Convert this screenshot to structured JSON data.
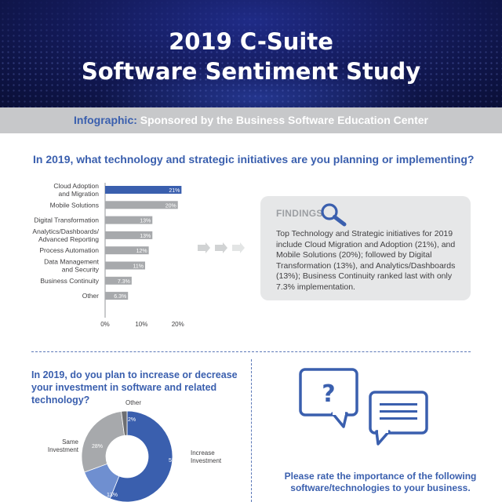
{
  "header": {
    "title_line1": "2019 C-Suite",
    "title_line2": "Software Sentiment Study"
  },
  "banner": {
    "prefix": "Infographic:",
    "text": "Sponsored by the Business Software Education Center"
  },
  "colors": {
    "header_bg": "#141b5c",
    "accent_blue": "#3a5fae",
    "bar_gray": "#a7a9ac",
    "panel_gray": "#e6e7e8"
  },
  "section1": {
    "question": "In 2019, what technology and strategic initiatives are you planning or implementing?"
  },
  "findings": {
    "title": "FINDINGS",
    "icon": "magnifier-icon",
    "text": "Top Technology and Strategic initiatives for 2019 include Cloud Migration and Adoption (21%), and Mobile Solutions (20%); followed by Digital Transformation (13%), and Analytics/Dashboards (13%); Business Continuity ranked last with only 7.3% implementation."
  },
  "section2": {
    "question": "In 2019, do you plan to increase or decrease your investment in software and related technology?"
  },
  "section3": {
    "question": "Please rate the importance of the following software/technologies to your business.",
    "icons": [
      "question-speech-bubble-icon",
      "text-speech-bubble-icon"
    ]
  },
  "chart_data": [
    {
      "type": "bar",
      "orientation": "horizontal",
      "categories": [
        [
          "Cloud Adoption",
          "and Migration"
        ],
        [
          "Mobile Solutions"
        ],
        [
          "Digital Transformation"
        ],
        [
          "Analytics/Dashboards/",
          "Advanced Reporting"
        ],
        [
          "Process Automation"
        ],
        [
          "Data Management",
          "and Security"
        ],
        [
          "Business Continuity"
        ],
        [
          "Other"
        ]
      ],
      "values": [
        21,
        20,
        13,
        13,
        12,
        11,
        7.3,
        6.3
      ],
      "value_labels": [
        "21%",
        "20%",
        "13%",
        "13%",
        "12%",
        "11%",
        "7.3%",
        "6.3%"
      ],
      "highlight_index": 0,
      "xlim": [
        0,
        22
      ],
      "xticks": [
        0,
        10,
        20
      ],
      "xtick_labels": [
        "0%",
        "10%",
        "20%"
      ],
      "grid": false
    },
    {
      "type": "pie",
      "variant": "donut",
      "slices": [
        {
          "label": "Increase Investment",
          "value": 55,
          "value_label": "55%",
          "color": "#3a5fae"
        },
        {
          "label": "",
          "value": 13,
          "value_label": "13%",
          "color": "#6f8fd0"
        },
        {
          "label": "Same Investment",
          "value": 28,
          "value_label": "28%",
          "color": "#a7a9ac"
        },
        {
          "label": "Other",
          "value": 2,
          "value_label": "2%",
          "color": "#6d6e71"
        }
      ]
    }
  ]
}
